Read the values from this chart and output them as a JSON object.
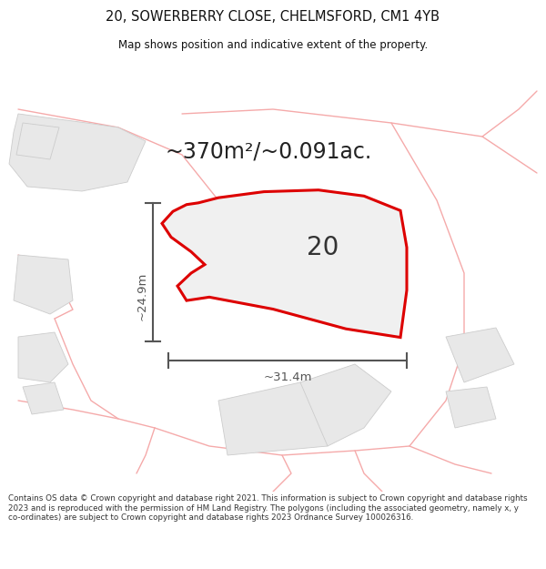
{
  "title_line1": "20, SOWERBERRY CLOSE, CHELMSFORD, CM1 4YB",
  "title_line2": "Map shows position and indicative extent of the property.",
  "area_text": "~370m²/~0.091ac.",
  "plot_number": "20",
  "dim_width": "~31.4m",
  "dim_height": "~24.9m",
  "footer_text": "Contains OS data © Crown copyright and database right 2021. This information is subject to Crown copyright and database rights 2023 and is reproduced with the permission of HM Land Registry. The polygons (including the associated geometry, namely x, y co-ordinates) are subject to Crown copyright and database rights 2023 Ordnance Survey 100026316.",
  "bg_color": "#ffffff",
  "map_bg": "#ffffff",
  "plot_fill": "#f0f0f0",
  "plot_stroke": "#dd0000",
  "road_stroke": "#f5aaaa",
  "neighbor_stroke": "#cccccc",
  "neighbor_fill": "#e8e8e8",
  "dim_color": "#555555",
  "title_color": "#111111",
  "number_color": "#333333",
  "area_color": "#222222"
}
